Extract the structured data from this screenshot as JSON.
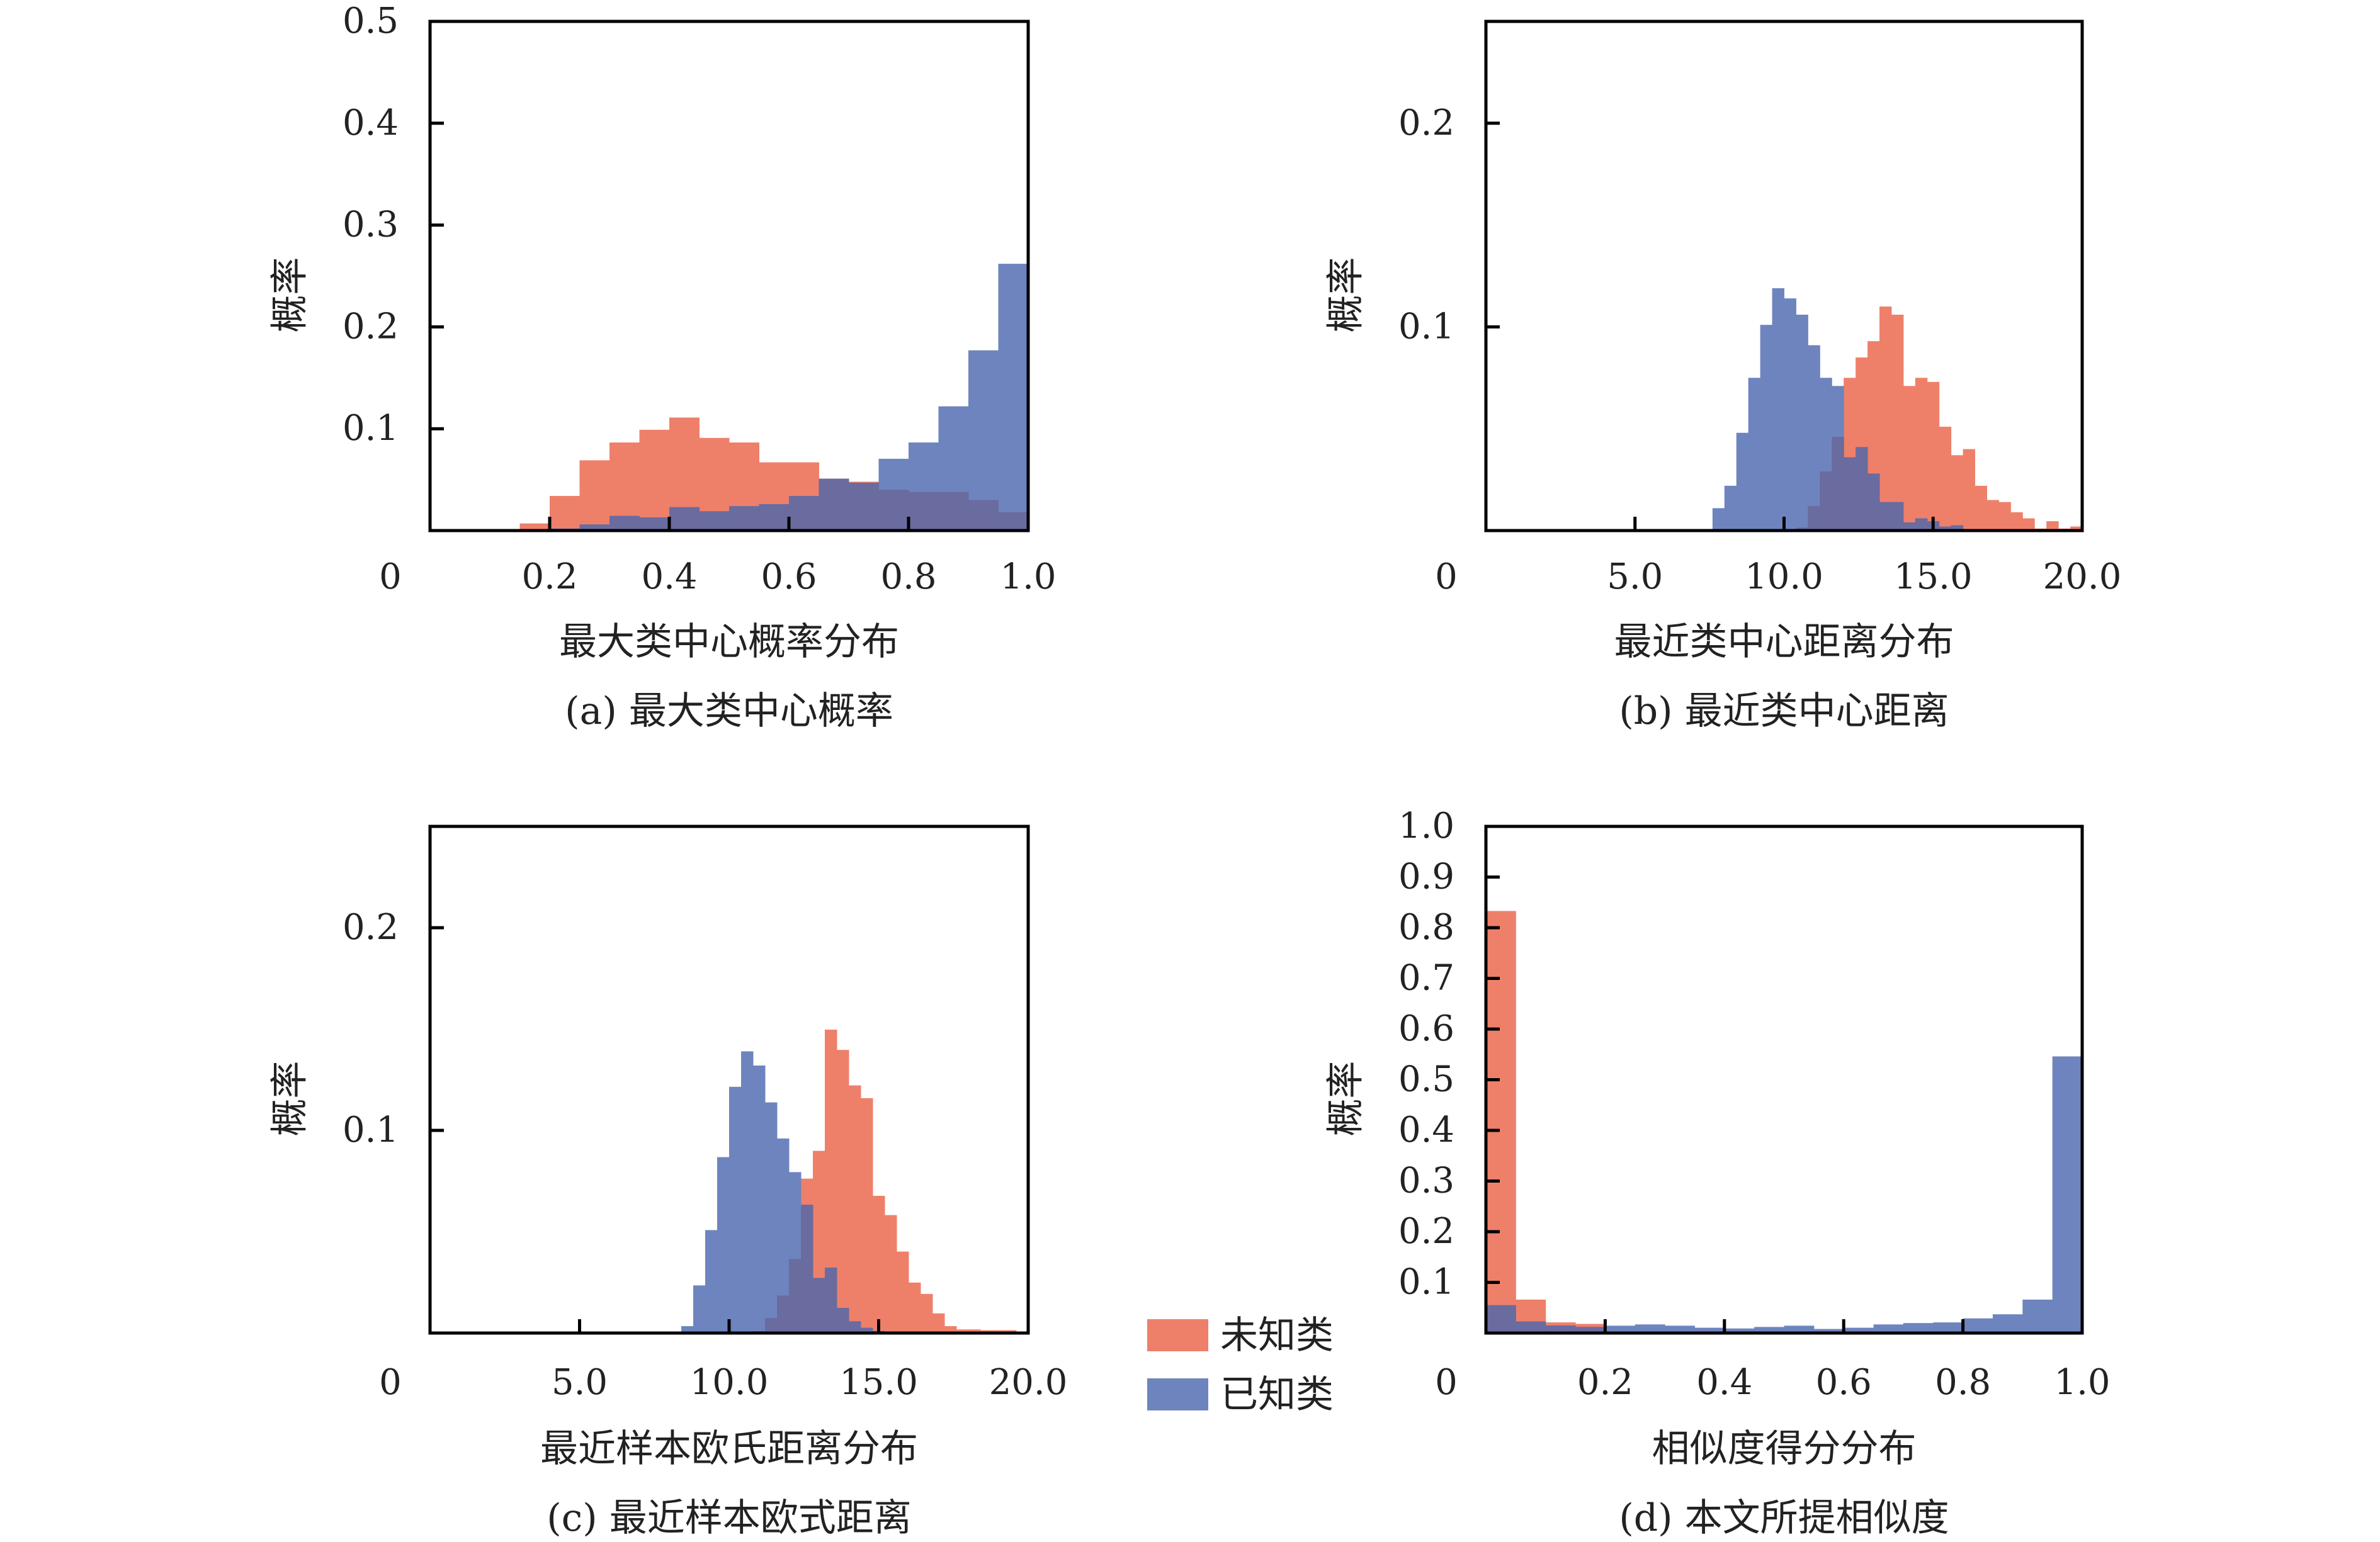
{
  "legend": {
    "unknown": "未知类",
    "known": "已知类"
  },
  "colors": {
    "unknown": "#EE806A",
    "known": "#6E84BE",
    "overlap": "#6A6B9F"
  },
  "chart_data": [
    {
      "type": "bar",
      "caption": "(a) 最大类中心概率",
      "xlabel": "最大类中心概率分布",
      "ylabel": "概率",
      "origin_label": "0",
      "xlim": [
        0,
        1.0
      ],
      "ylim": [
        0,
        0.5
      ],
      "xticks": [
        "0.2",
        "0.4",
        "0.6",
        "0.8",
        "1.0"
      ],
      "yticks": [
        "0.1",
        "0.2",
        "0.3",
        "0.4",
        "0.5"
      ],
      "bin_start": 0,
      "bin_width": 0.05,
      "series": [
        {
          "name": "未知类",
          "values": [
            0,
            0,
            0,
            0.007,
            0.034,
            0.069,
            0.0865,
            0.099,
            0.111,
            0.091,
            0.0865,
            0.067,
            0.067,
            0.051,
            0.048,
            0.04,
            0.038,
            0.038,
            0.03,
            0.018
          ]
        },
        {
          "name": "已知类",
          "values": [
            0,
            0,
            0,
            0,
            0.002,
            0.006,
            0.0145,
            0.013,
            0.023,
            0.019,
            0.024,
            0.026,
            0.034,
            0.051,
            0.047,
            0.0705,
            0.0865,
            0.122,
            0.177,
            0.262
          ]
        }
      ]
    },
    {
      "type": "bar",
      "caption": "(b) 最近类中心距离",
      "xlabel": "最近类中心距离分布",
      "ylabel": "概率",
      "origin_label": "0",
      "xlim": [
        0,
        20.0
      ],
      "ylim": [
        0,
        0.25
      ],
      "xticks": [
        "5.0",
        "10.0",
        "15.0",
        "20.0"
      ],
      "yticks": [
        "0.1",
        "0.2"
      ],
      "bin_start": 7.2,
      "bin_width": 0.4,
      "series": [
        {
          "name": "未知类",
          "values": [
            0,
            0,
            0,
            0,
            0,
            0,
            0,
            0,
            0.0015,
            0.012,
            0.029,
            0.046,
            0.075,
            0.085,
            0.093,
            0.11,
            0.106,
            0.071,
            0.075,
            0.073,
            0.051,
            0.037,
            0.04,
            0.022,
            0.015,
            0.014,
            0.009,
            0.006,
            0.001,
            0.0046,
            0.001,
            0.002
          ]
        },
        {
          "name": "已知类",
          "values": [
            0.0005,
            0.011,
            0.022,
            0.048,
            0.075,
            0.101,
            0.119,
            0.114,
            0.106,
            0.091,
            0.075,
            0.071,
            0.036,
            0.041,
            0.028,
            0.014,
            0.014,
            0.004,
            0.006,
            0.0046,
            0.002,
            0.0026,
            0,
            0,
            0,
            0,
            0,
            0,
            0,
            0,
            0,
            0
          ]
        }
      ]
    },
    {
      "type": "bar",
      "caption": "(c) 最近样本欧式距离",
      "xlabel": "最近样本欧氏距离分布",
      "ylabel": "概率",
      "origin_label": "0",
      "xlim": [
        0,
        20.0
      ],
      "ylim": [
        0,
        0.25
      ],
      "xticks": [
        "5.0",
        "10.0",
        "15.0",
        "20.0"
      ],
      "yticks": [
        "0.1",
        "0.2"
      ],
      "bin_start": 8.0,
      "bin_width": 0.4,
      "series": [
        {
          "name": "未知类",
          "values": [
            0,
            0,
            0,
            0,
            0,
            0,
            0,
            0.001,
            0.0074,
            0.0185,
            0.0365,
            0.0762,
            0.0899,
            0.1497,
            0.1397,
            0.1222,
            0.1159,
            0.0677,
            0.0582,
            0.0402,
            0.0249,
            0.0193,
            0.0097,
            0.0034,
            0.0018,
            0.0018,
            0.0014,
            0.0014,
            0.0014
          ]
        },
        {
          "name": "已知类",
          "values": [
            0.0003,
            0.0034,
            0.0235,
            0.0508,
            0.0868,
            0.1215,
            0.139,
            0.132,
            0.1138,
            0.096,
            0.0794,
            0.0633,
            0.0272,
            0.0323,
            0.0124,
            0.0058,
            0.0026,
            0.001,
            0,
            0,
            0,
            0,
            0,
            0,
            0,
            0,
            0,
            0,
            0
          ]
        }
      ]
    },
    {
      "type": "bar",
      "caption": "(d) 本文所提相似度",
      "xlabel": "相似度得分分布",
      "ylabel": "概率",
      "origin_label": "0",
      "xlim": [
        0,
        1.0
      ],
      "ylim": [
        0,
        1.0
      ],
      "xticks": [
        "0.2",
        "0.4",
        "0.6",
        "0.8",
        "1.0"
      ],
      "yticks": [
        "0.1",
        "0.2",
        "0.3",
        "0.4",
        "0.5",
        "0.6",
        "0.7",
        "0.8",
        "0.9",
        "1.0"
      ],
      "bin_start": 0,
      "bin_width": 0.05,
      "series": [
        {
          "name": "未知类",
          "values": [
            0.833,
            0.066,
            0.021,
            0.018,
            0,
            0,
            0,
            0,
            0,
            0,
            0,
            0,
            0,
            0,
            0,
            0,
            0,
            0,
            0,
            0
          ]
        },
        {
          "name": "已知类",
          "values": [
            0.055,
            0.023,
            0.015,
            0.012,
            0.0145,
            0.017,
            0.0145,
            0.0105,
            0.009,
            0.012,
            0.0145,
            0.008,
            0.0105,
            0.017,
            0.0197,
            0.021,
            0.029,
            0.037,
            0.066,
            0.546
          ]
        }
      ]
    }
  ]
}
